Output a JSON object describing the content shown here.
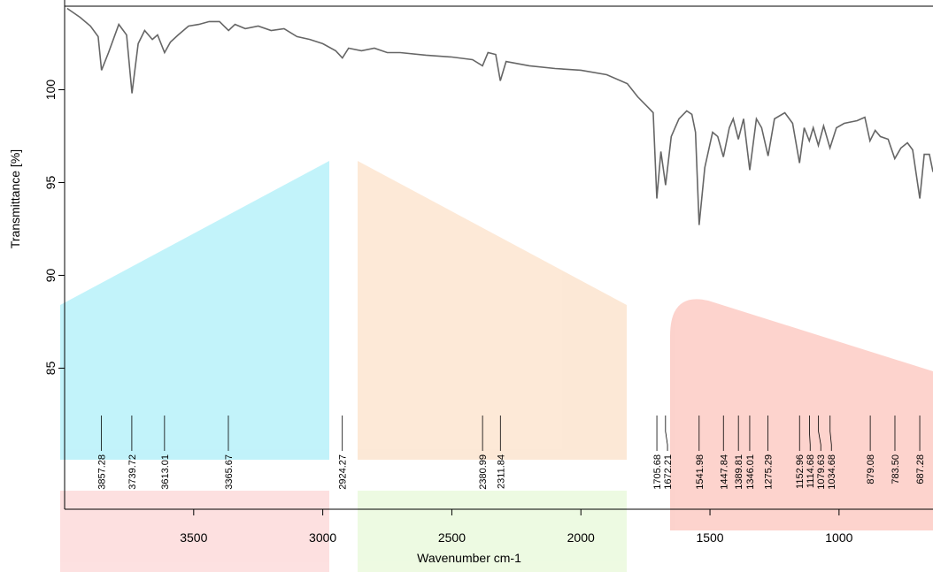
{
  "chart_data": {
    "type": "line",
    "x_label": "Wavenumber cm-1",
    "y_label": "Transmittance [%]",
    "color": "#666666",
    "xlim": [
      4000,
      636
    ],
    "ylim": [
      77.4,
      104.5
    ],
    "xticks": [
      3500,
      3000,
      2500,
      2000,
      1500,
      1000
    ],
    "yticks": [
      85,
      90,
      95,
      100
    ],
    "x": [
      3990,
      3940,
      3900,
      3870,
      3857,
      3830,
      3790,
      3760,
      3739,
      3715,
      3690,
      3660,
      3640,
      3613,
      3590,
      3560,
      3520,
      3480,
      3440,
      3400,
      3365,
      3340,
      3300,
      3250,
      3200,
      3150,
      3100,
      3050,
      3000,
      2950,
      2924,
      2900,
      2850,
      2800,
      2750,
      2700,
      2600,
      2500,
      2420,
      2381,
      2360,
      2330,
      2312,
      2290,
      2200,
      2100,
      2000,
      1900,
      1820,
      1780,
      1740,
      1720,
      1706,
      1690,
      1672,
      1650,
      1620,
      1590,
      1570,
      1556,
      1542,
      1520,
      1490,
      1470,
      1448,
      1425,
      1410,
      1390,
      1370,
      1346,
      1320,
      1300,
      1275,
      1250,
      1210,
      1180,
      1153,
      1135,
      1115,
      1100,
      1080,
      1060,
      1035,
      1010,
      980,
      930,
      900,
      880,
      860,
      840,
      810,
      784,
      760,
      735,
      715,
      687,
      670,
      650,
      636
    ],
    "values": [
      104.38,
      103.9,
      103.43,
      102.86,
      101.05,
      102.0,
      103.52,
      102.95,
      99.81,
      102.48,
      103.19,
      102.71,
      102.95,
      102.0,
      102.57,
      102.95,
      103.43,
      103.52,
      103.67,
      103.67,
      103.19,
      103.52,
      103.29,
      103.43,
      103.19,
      103.29,
      102.86,
      102.71,
      102.48,
      102.1,
      101.71,
      102.24,
      102.1,
      102.24,
      102.0,
      102.0,
      101.86,
      101.76,
      101.62,
      101.29,
      102.0,
      101.9,
      100.48,
      101.52,
      101.29,
      101.14,
      101.05,
      100.81,
      100.33,
      99.62,
      99.05,
      98.76,
      94.14,
      96.67,
      94.86,
      97.48,
      98.43,
      98.86,
      98.67,
      97.71,
      92.71,
      95.81,
      97.71,
      97.48,
      96.38,
      97.95,
      98.43,
      97.33,
      98.43,
      95.67,
      98.43,
      97.95,
      96.43,
      98.43,
      98.76,
      98.19,
      96.05,
      97.95,
      97.24,
      97.95,
      97.0,
      98.05,
      96.86,
      97.95,
      98.19,
      98.33,
      98.52,
      97.24,
      97.81,
      97.48,
      97.33,
      96.29,
      96.86,
      97.14,
      96.76,
      94.14,
      96.52,
      96.52,
      95.57
    ],
    "peaks": [
      3857.28,
      3739.72,
      3613.01,
      3365.67,
      2924.27,
      2380.99,
      2311.84,
      1705.68,
      1672.21,
      1541.98,
      1447.84,
      1389.81,
      1346.01,
      1275.29,
      1152.96,
      1114.68,
      1079.63,
      1034.68,
      879.08,
      {
        "value": 783.5,
        "label": "783.50"
      },
      687.28
    ]
  }
}
